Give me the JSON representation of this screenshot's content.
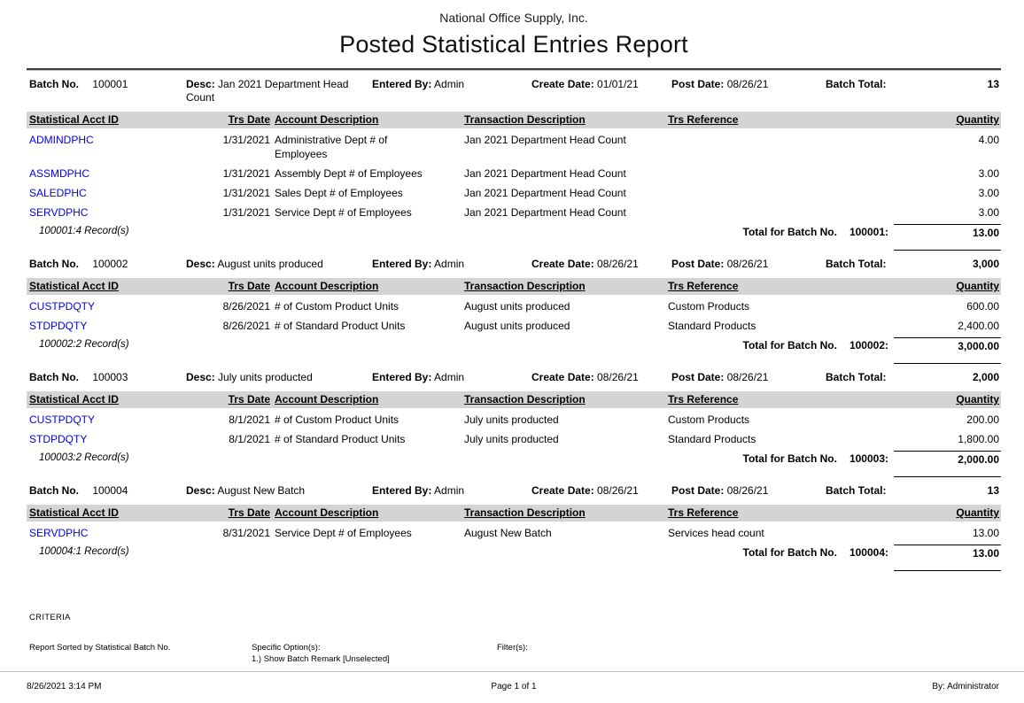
{
  "report": {
    "company": "National Office Supply, Inc.",
    "title": "Posted Statistical Entries Report"
  },
  "labels": {
    "batch_no": "Batch No.",
    "desc": "Desc:",
    "entered_by": "Entered By:",
    "create_date": "Create Date:",
    "post_date": "Post Date:",
    "batch_total": "Batch Total:",
    "total_for_batch": "Total for Batch No."
  },
  "columns": [
    "Statistical Acct ID",
    "Trs Date",
    "Account Description",
    "Transaction Description",
    "Trs Reference",
    "Quantity"
  ],
  "batches": [
    {
      "batch_no": "100001",
      "desc": "Jan 2021 Department Head Count",
      "entered_by": "Admin",
      "create_date": "01/01/21",
      "post_date": "08/26/21",
      "batch_total": "13",
      "rows": [
        {
          "acct_id": "ADMINDPHC",
          "trs_date": "1/31/2021",
          "account_desc": "Administrative Dept # of Employees",
          "trans_desc": "Jan 2021 Department Head Count",
          "trs_ref": "",
          "qty": "4.00"
        },
        {
          "acct_id": "ASSMDPHC",
          "trs_date": "1/31/2021",
          "account_desc": "Assembly Dept # of Employees",
          "trans_desc": "Jan 2021 Department Head Count",
          "trs_ref": "",
          "qty": "3.00"
        },
        {
          "acct_id": "SALEDPHC",
          "trs_date": "1/31/2021",
          "account_desc": "Sales Dept # of Employees",
          "trans_desc": "Jan 2021 Department Head Count",
          "trs_ref": "",
          "qty": "3.00"
        },
        {
          "acct_id": "SERVDPHC",
          "trs_date": "1/31/2021",
          "account_desc": "Service Dept # of Employees",
          "trans_desc": "Jan 2021 Department Head Count",
          "trs_ref": "",
          "qty": "3.00"
        }
      ],
      "record_count": "100001:4 Record(s)",
      "total_ref": "100001:",
      "total_qty": "13.00"
    },
    {
      "batch_no": "100002",
      "desc": "August units produced",
      "entered_by": "Admin",
      "create_date": "08/26/21",
      "post_date": "08/26/21",
      "batch_total": "3,000",
      "rows": [
        {
          "acct_id": "CUSTPDQTY",
          "trs_date": "8/26/2021",
          "account_desc": "# of Custom Product Units",
          "trans_desc": "August units produced",
          "trs_ref": "Custom Products",
          "qty": "600.00"
        },
        {
          "acct_id": "STDPDQTY",
          "trs_date": "8/26/2021",
          "account_desc": "# of Standard Product Units",
          "trans_desc": "August units produced",
          "trs_ref": "Standard Products",
          "qty": "2,400.00"
        }
      ],
      "record_count": "100002:2 Record(s)",
      "total_ref": "100002:",
      "total_qty": "3,000.00"
    },
    {
      "batch_no": "100003",
      "desc": "July units producted",
      "entered_by": "Admin",
      "create_date": "08/26/21",
      "post_date": "08/26/21",
      "batch_total": "2,000",
      "rows": [
        {
          "acct_id": "CUSTPDQTY",
          "trs_date": "8/1/2021",
          "account_desc": "# of Custom Product Units",
          "trans_desc": "July units producted",
          "trs_ref": "Custom Products",
          "qty": "200.00"
        },
        {
          "acct_id": "STDPDQTY",
          "trs_date": "8/1/2021",
          "account_desc": "# of Standard Product Units",
          "trans_desc": "July units producted",
          "trs_ref": "Standard Products",
          "qty": "1,800.00"
        }
      ],
      "record_count": "100003:2 Record(s)",
      "total_ref": "100003:",
      "total_qty": "2,000.00"
    },
    {
      "batch_no": "100004",
      "desc": "August New Batch",
      "entered_by": "Admin",
      "create_date": "08/26/21",
      "post_date": "08/26/21",
      "batch_total": "13",
      "rows": [
        {
          "acct_id": "SERVDPHC",
          "trs_date": "8/31/2021",
          "account_desc": "Service Dept # of Employees",
          "trans_desc": "August New Batch",
          "trs_ref": "Services head count",
          "qty": "13.00"
        }
      ],
      "record_count": "100004:1 Record(s)",
      "total_ref": "100004:",
      "total_qty": "13.00"
    }
  ],
  "criteria": {
    "heading": "CRITERIA",
    "sorted_by": "Report Sorted by Statistical Batch No.",
    "specific_options_label": "Specific Option(s):",
    "specific_option_1": "1.) Show Batch Remark [Unselected]",
    "filters_label": "Filter(s):"
  },
  "footer": {
    "datetime": "8/26/2021 3:14 PM",
    "page": "Page 1 of 1",
    "by": "By: Administrator"
  },
  "colors": {
    "acct_id_link": "#0000EE",
    "column_band": "#D4D4D4"
  }
}
